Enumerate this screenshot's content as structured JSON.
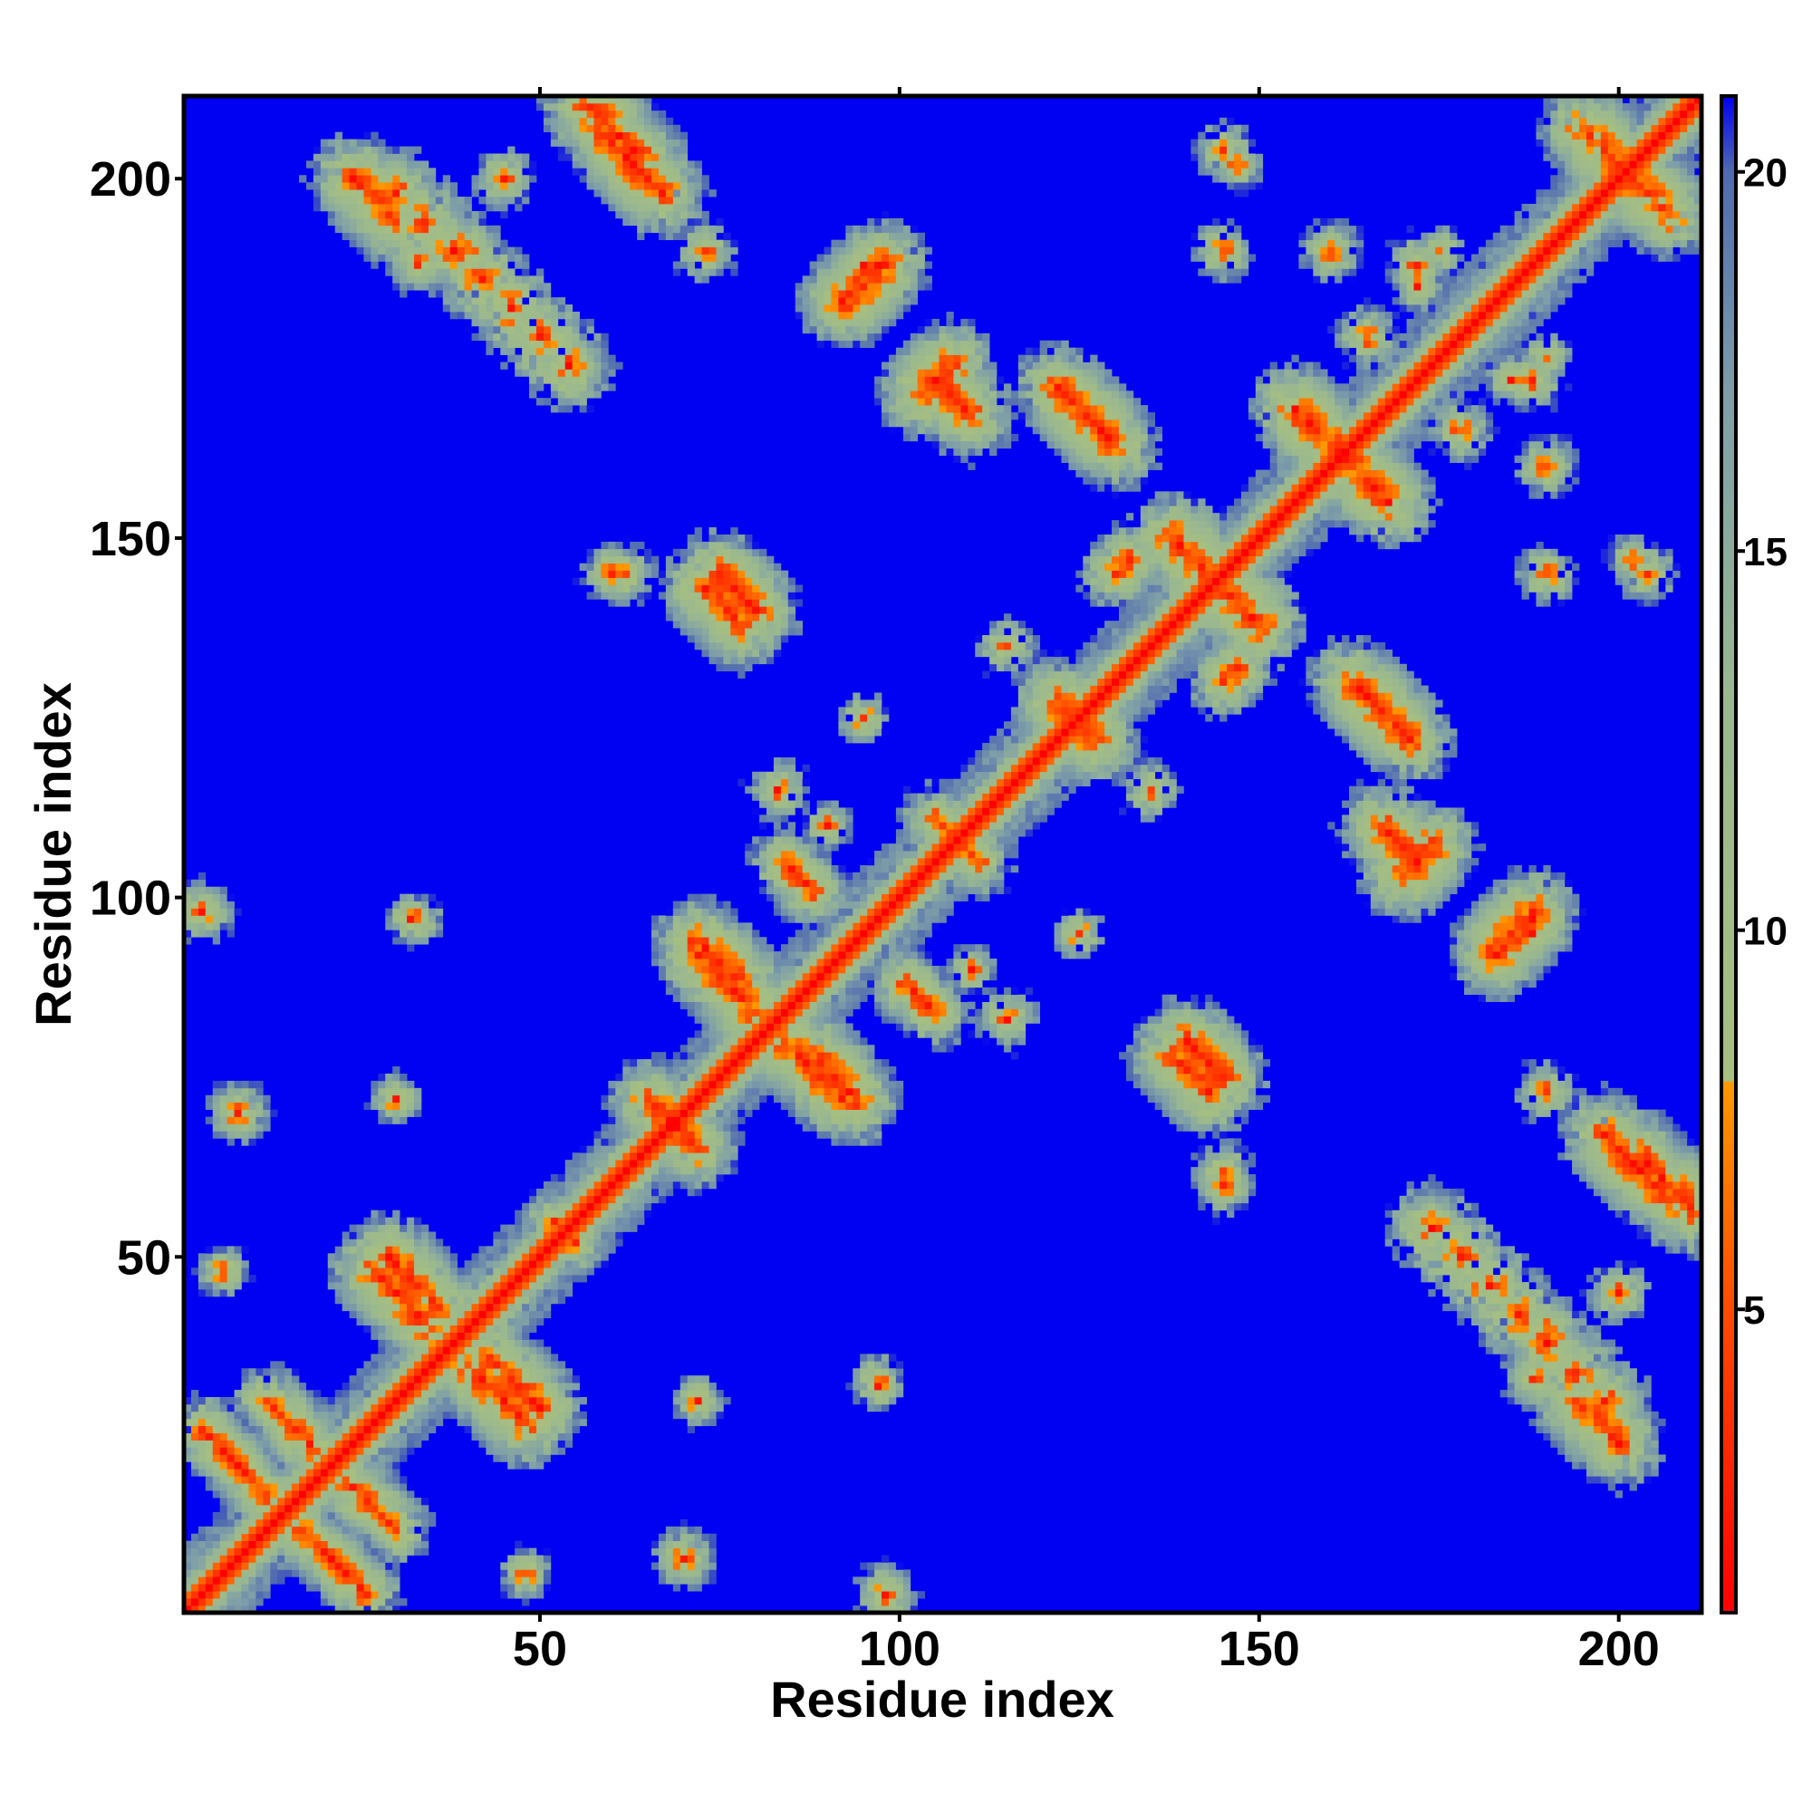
{
  "chart_data": {
    "type": "heatmap",
    "title": "",
    "xlabel": "Residue index",
    "ylabel": "Residue index",
    "n_residues": 211,
    "xlim": [
      1,
      211
    ],
    "ylim": [
      1,
      211
    ],
    "x_ticks": [
      50,
      100,
      150,
      200
    ],
    "y_ticks": [
      50,
      100,
      150,
      200
    ],
    "colorbar": {
      "range": [
        1,
        21
      ],
      "ticks": [
        5,
        10,
        15,
        20
      ],
      "colors": [
        {
          "value": 1,
          "color": "#ff0000"
        },
        {
          "value": 5,
          "color": "#ff4a00"
        },
        {
          "value": 8,
          "color": "#ff9900"
        },
        {
          "value": 8.01,
          "color": "#a7bf80"
        },
        {
          "value": 13,
          "color": "#9ab890"
        },
        {
          "value": 17,
          "color": "#7f9fa8"
        },
        {
          "value": 20,
          "color": "#4f6ab0"
        },
        {
          "value": 21,
          "color": "#0000f2"
        }
      ]
    },
    "background_color": "#0000f2",
    "symmetric": true,
    "description_of_values": "pairwise residue distance map; diagonal value 0 (red), beyond cutoff shown as blue",
    "contact_clusters": [
      {
        "x": 30,
        "y": 198,
        "dx": 4,
        "dy": -4,
        "len": 7,
        "strength": 0.9
      },
      {
        "x": 58,
        "y": 207,
        "dx": 1,
        "dy": -1,
        "len": 10,
        "strength": 0.9
      },
      {
        "x": 40,
        "y": 190,
        "dx": 0,
        "dy": 0,
        "len": 1,
        "strength": 0.6
      },
      {
        "x": 45,
        "y": 200,
        "dx": 0,
        "dy": 0,
        "len": 1,
        "strength": 0.6
      },
      {
        "x": 92,
        "y": 183,
        "dx": 1,
        "dy": 1,
        "len": 6,
        "strength": 0.9
      },
      {
        "x": 105,
        "y": 172,
        "dx": 1,
        "dy": -1,
        "len": 6,
        "strength": 0.9
      },
      {
        "x": 125,
        "y": 168,
        "dx": 1,
        "dy": -1,
        "len": 6,
        "strength": 0.9
      },
      {
        "x": 160,
        "y": 190,
        "dx": 0,
        "dy": 0,
        "len": 1,
        "strength": 0.6
      },
      {
        "x": 147,
        "y": 202,
        "dx": 0,
        "dy": 0,
        "len": 1,
        "strength": 0.5
      },
      {
        "x": 195,
        "y": 207,
        "dx": 1,
        "dy": -1,
        "len": 8,
        "strength": 0.9
      },
      {
        "x": 172,
        "y": 188,
        "dx": 0,
        "dy": 0,
        "len": 1,
        "strength": 0.6
      },
      {
        "x": 165,
        "y": 178,
        "dx": 0,
        "dy": 0,
        "len": 1,
        "strength": 0.6
      },
      {
        "x": 185,
        "y": 172,
        "dx": 0,
        "dy": 0,
        "len": 1,
        "strength": 0.5
      },
      {
        "x": 155,
        "y": 168,
        "dx": 1,
        "dy": -1,
        "len": 8,
        "strength": 0.95
      },
      {
        "x": 138,
        "y": 150,
        "dx": 1,
        "dy": -1,
        "len": 10,
        "strength": 0.95
      },
      {
        "x": 73,
        "y": 143,
        "dx": 1,
        "dy": -1,
        "len": 6,
        "strength": 0.9
      },
      {
        "x": 60,
        "y": 145,
        "dx": 0,
        "dy": 0,
        "len": 1,
        "strength": 0.6
      },
      {
        "x": 122,
        "y": 127,
        "dx": 1,
        "dy": -1,
        "len": 6,
        "strength": 0.9
      },
      {
        "x": 115,
        "y": 135,
        "dx": 0,
        "dy": 0,
        "len": 1,
        "strength": 0.6
      },
      {
        "x": 130,
        "y": 145,
        "dx": 1,
        "dy": 1,
        "len": 3,
        "strength": 0.7
      },
      {
        "x": 165,
        "y": 128,
        "dx": 1,
        "dy": -1,
        "len": 7,
        "strength": 0.9
      },
      {
        "x": 170,
        "y": 103,
        "dx": 1,
        "dy": 1,
        "len": 5,
        "strength": 0.9
      },
      {
        "x": 183,
        "y": 93,
        "dx": 1,
        "dy": 1,
        "len": 6,
        "strength": 0.9
      },
      {
        "x": 190,
        "y": 145,
        "dx": 0,
        "dy": 0,
        "len": 1,
        "strength": 0.6
      },
      {
        "x": 204,
        "y": 145,
        "dx": 0,
        "dy": 0,
        "len": 1,
        "strength": 0.6
      },
      {
        "x": 83,
        "y": 115,
        "dx": 0,
        "dy": 0,
        "len": 1,
        "strength": 0.6
      },
      {
        "x": 90,
        "y": 110,
        "dx": 0,
        "dy": 0,
        "len": 1,
        "strength": 0.5
      },
      {
        "x": 108,
        "y": 108,
        "dx": 1,
        "dy": -1,
        "len": 4,
        "strength": 0.7
      },
      {
        "x": 72,
        "y": 94,
        "dx": 1,
        "dy": -1,
        "len": 7,
        "strength": 0.9
      },
      {
        "x": 84,
        "y": 80,
        "dx": 1,
        "dy": -1,
        "len": 9,
        "strength": 0.9
      },
      {
        "x": 101,
        "y": 88,
        "dx": 1,
        "dy": -1,
        "len": 5,
        "strength": 0.7
      },
      {
        "x": 140,
        "y": 80,
        "dx": 1,
        "dy": -1,
        "len": 6,
        "strength": 0.9
      },
      {
        "x": 145,
        "y": 62,
        "dx": 0,
        "dy": 0,
        "len": 1,
        "strength": 0.6
      },
      {
        "x": 125,
        "y": 95,
        "dx": 0,
        "dy": 0,
        "len": 1,
        "strength": 0.5
      },
      {
        "x": 65,
        "y": 72,
        "dx": 1,
        "dy": -1,
        "len": 6,
        "strength": 0.8
      },
      {
        "x": 203,
        "y": 64,
        "dx": 1,
        "dy": -1,
        "len": 9,
        "strength": 0.9
      },
      {
        "x": 190,
        "y": 73,
        "dx": 0,
        "dy": 0,
        "len": 1,
        "strength": 0.6
      },
      {
        "x": 194,
        "y": 30,
        "dx": 1,
        "dy": -1,
        "len": 7,
        "strength": 0.9
      },
      {
        "x": 188,
        "y": 33,
        "dx": 0,
        "dy": 0,
        "len": 1,
        "strength": 0.6
      },
      {
        "x": 29,
        "y": 50,
        "dx": 1,
        "dy": -1,
        "len": 8,
        "strength": 0.9
      },
      {
        "x": 40,
        "y": 35,
        "dx": 1,
        "dy": -1,
        "len": 9,
        "strength": 0.9
      },
      {
        "x": 52,
        "y": 55,
        "dx": 0,
        "dy": 0,
        "len": 1,
        "strength": 0.6
      },
      {
        "x": 12,
        "y": 30,
        "dx": 1,
        "dy": -1,
        "len": 8,
        "strength": 0.7
      },
      {
        "x": 17,
        "y": 12,
        "dx": 1,
        "dy": -1,
        "len": 10,
        "strength": 0.7
      },
      {
        "x": 3,
        "y": 98,
        "dx": 0,
        "dy": 0,
        "len": 1,
        "strength": 0.6
      },
      {
        "x": 33,
        "y": 97,
        "dx": 0,
        "dy": 0,
        "len": 1,
        "strength": 0.5
      },
      {
        "x": 8,
        "y": 70,
        "dx": 0,
        "dy": 0,
        "len": 1,
        "strength": 0.6
      },
      {
        "x": 30,
        "y": 72,
        "dx": 0,
        "dy": 0,
        "len": 1,
        "strength": 0.5
      },
      {
        "x": 6,
        "y": 48,
        "dx": 0,
        "dy": 0,
        "len": 1,
        "strength": 0.5
      },
      {
        "x": 98,
        "y": 3,
        "dx": 0,
        "dy": 0,
        "len": 1,
        "strength": 0.6
      },
      {
        "x": 97,
        "y": 32,
        "dx": 0,
        "dy": 0,
        "len": 1,
        "strength": 0.5
      },
      {
        "x": 70,
        "y": 8,
        "dx": 0,
        "dy": 0,
        "len": 1,
        "strength": 0.6
      },
      {
        "x": 72,
        "y": 30,
        "dx": 0,
        "dy": 0,
        "len": 1,
        "strength": 0.5
      },
      {
        "x": 48,
        "y": 6,
        "dx": 0,
        "dy": 0,
        "len": 1,
        "strength": 0.5
      },
      {
        "x": 188,
        "y": 95,
        "dx": 0,
        "dy": 0,
        "len": 1,
        "strength": 0.6
      },
      {
        "x": 175,
        "y": 190,
        "dx": 0,
        "dy": 0,
        "len": 1,
        "strength": 0.5
      }
    ]
  }
}
